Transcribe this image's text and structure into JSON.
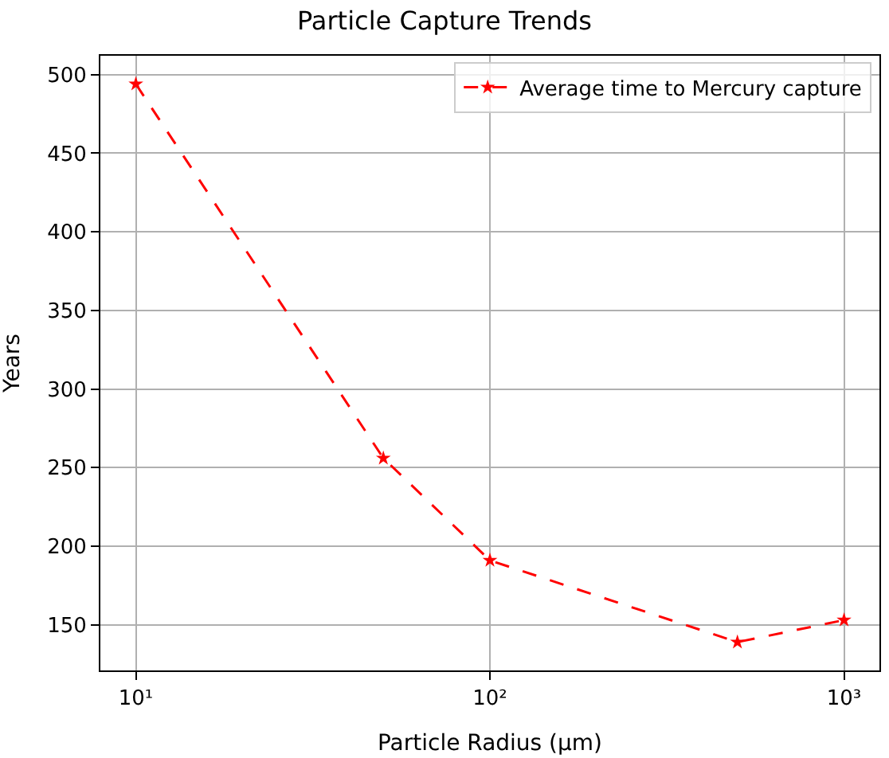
{
  "chart_data": {
    "type": "line",
    "title": "Particle Capture Trends",
    "xlabel": "Particle Radius (μm)",
    "ylabel": "Years",
    "x": [
      10,
      50,
      100,
      500,
      1000
    ],
    "series": [
      {
        "name": "Average time to Mercury capture",
        "color": "#ff0000",
        "values": [
          494,
          256,
          191,
          139,
          153
        ]
      }
    ],
    "log": "x",
    "xlim": [
      7.94,
      1259
    ],
    "ylim": [
      121,
      512
    ],
    "xticks": [
      {
        "value": 10,
        "label": "10¹"
      },
      {
        "value": 100,
        "label": "10²"
      },
      {
        "value": 1000,
        "label": "10³"
      }
    ],
    "yticks": [
      150,
      200,
      250,
      300,
      350,
      400,
      450,
      500
    ],
    "grid": true,
    "legend": "top right",
    "marker": "star",
    "line_style": "dashed"
  }
}
